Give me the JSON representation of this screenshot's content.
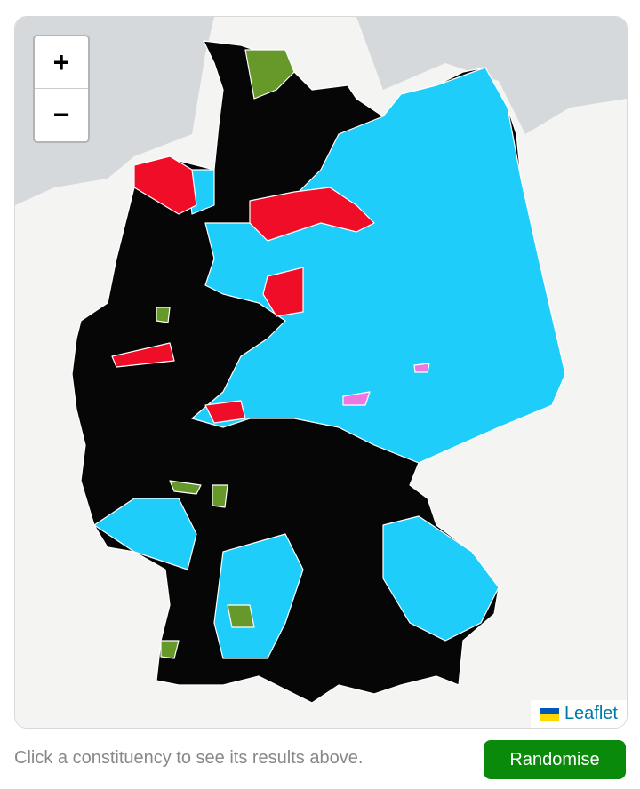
{
  "zoom_controls": {
    "zoom_in": "+",
    "zoom_out": "−"
  },
  "attribution": "Leaflet",
  "instruction": "Click a constituency to see its results above.",
  "button": "Randomise"
}
